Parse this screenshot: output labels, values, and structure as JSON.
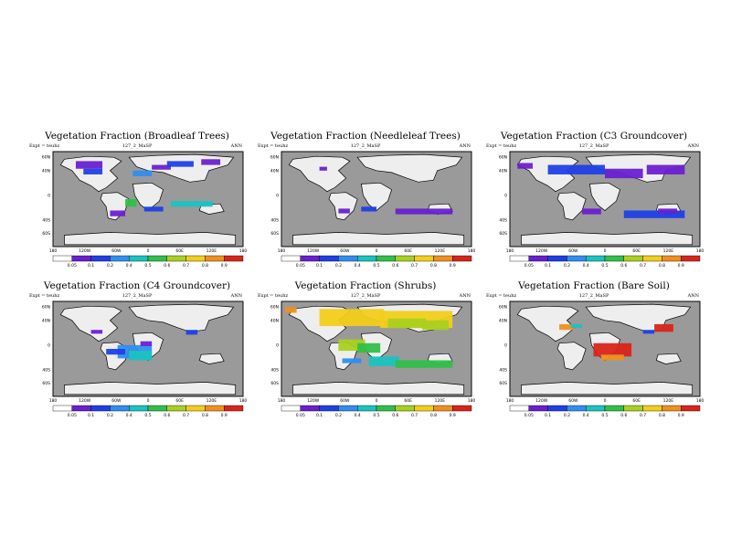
{
  "figure": {
    "expt_label": "Expt = teuhz",
    "run_label": "127_2_MaSP",
    "season": "ANN",
    "lat_labels": [
      "60N",
      "40N",
      "0",
      "40S",
      "60S"
    ],
    "lon_labels": [
      "180",
      "120W",
      "60W",
      "0",
      "60E",
      "120E",
      "180"
    ],
    "colorbar_labels": [
      "0.05",
      "0.1",
      "0.2",
      "0.4",
      "0.5",
      "0.6",
      "0.7",
      "0.8",
      "0.9"
    ],
    "colorbar_colors": [
      "#ffffff",
      "#6a1fd0",
      "#1f3fe6",
      "#2f8ef0",
      "#19c3c0",
      "#2fc048",
      "#a9d01d",
      "#f2cd1a",
      "#f08f1d",
      "#d9241a"
    ],
    "colors": {
      "ocean": "#9a9a9a",
      "land": "#eeeeee",
      "coast": "#000000"
    }
  },
  "panels": [
    {
      "title": "Vegetation Fraction (Broadleaf Trees)",
      "subtitle": "127_2_MaSP",
      "expt": "Expt = teuhz",
      "season": "ANN"
    },
    {
      "title": "Vegetation Fraction (Needleleaf Trees)",
      "subtitle": "127_2_MaSP",
      "expt": "Expt = teuhz",
      "season": "ANN"
    },
    {
      "title": "Vegetation Fraction (C3 Groundcover)",
      "subtitle": "127_2_MaSP",
      "expt": "Expt = teuhz",
      "season": "ANN"
    },
    {
      "title": "Vegetation Fraction (C4 Groundcover)",
      "subtitle": "127_2_MaSP",
      "expt": "Expt = teuhz",
      "season": "ANN"
    },
    {
      "title": "Vegetation Fraction (Shrubs)",
      "subtitle": "127_2_MaSP",
      "expt": "Expt = teuhz",
      "season": "ANN"
    },
    {
      "title": "Vegetation Fraction (Bare Soil)",
      "subtitle": "127_2_MaSP",
      "expt": "Expt = teuhz",
      "season": "ANN"
    }
  ]
}
